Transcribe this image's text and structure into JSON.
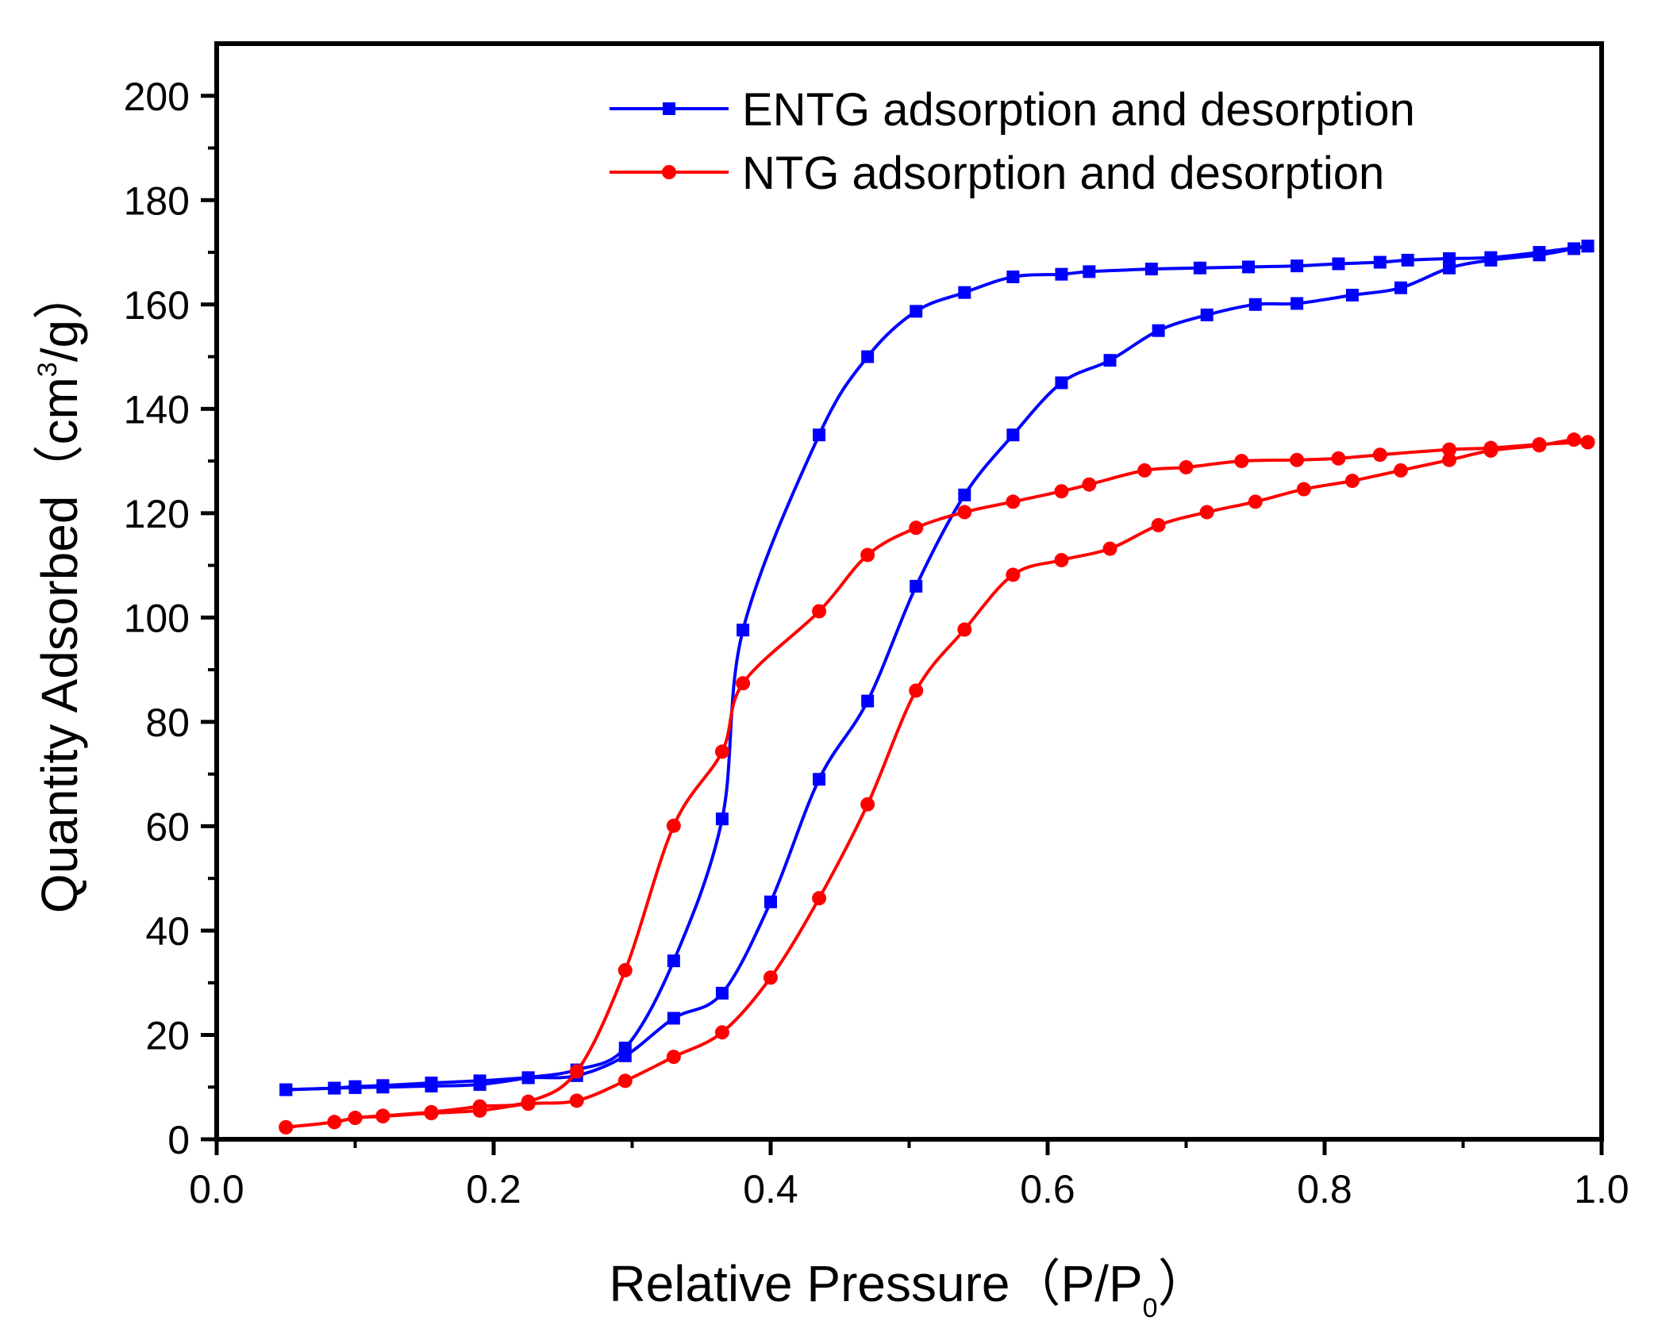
{
  "chart_data": {
    "type": "line",
    "xlabel": {
      "main": "Relative Pressure（P/P",
      "sub": "0",
      "end": "）"
    },
    "ylabel": {
      "main": "Quantity Adsorbed（cm",
      "sup": "3",
      "end": "/g）"
    },
    "xlim": [
      0.0,
      1.0
    ],
    "ylim": [
      0,
      210
    ],
    "x_ticks": [
      "0.0",
      "0.2",
      "0.4",
      "0.6",
      "0.8",
      "1.0"
    ],
    "y_ticks": [
      "0",
      "20",
      "40",
      "60",
      "80",
      "100",
      "120",
      "140",
      "160",
      "180",
      "200"
    ],
    "grid": false,
    "legend_position": "top-right",
    "series": [
      {
        "name": "ENTG adsorption and desorption",
        "color": "#0000ff",
        "marker": "square",
        "adsorption": [
          [
            0.05,
            9.5
          ],
          [
            0.085,
            9.8
          ],
          [
            0.1,
            10.1
          ],
          [
            0.12,
            10.3
          ],
          [
            0.155,
            10.8
          ],
          [
            0.19,
            11.2
          ],
          [
            0.225,
            11.8
          ],
          [
            0.26,
            12.2
          ],
          [
            0.295,
            16.0
          ],
          [
            0.33,
            23.2
          ],
          [
            0.365,
            28.0
          ],
          [
            0.4,
            45.5
          ],
          [
            0.435,
            69.0
          ],
          [
            0.47,
            84.0
          ],
          [
            0.505,
            106.0
          ],
          [
            0.54,
            123.5
          ],
          [
            0.575,
            135.0
          ],
          [
            0.61,
            145.0
          ],
          [
            0.645,
            149.3
          ],
          [
            0.68,
            155.0
          ],
          [
            0.715,
            158.0
          ],
          [
            0.75,
            160.0
          ],
          [
            0.78,
            160.2
          ],
          [
            0.82,
            161.8
          ],
          [
            0.855,
            163.2
          ],
          [
            0.89,
            167.0
          ],
          [
            0.92,
            168.5
          ],
          [
            0.955,
            169.5
          ],
          [
            0.98,
            170.7
          ],
          [
            0.99,
            171.2
          ]
        ],
        "desorption": [
          [
            0.99,
            171.2
          ],
          [
            0.955,
            170.0
          ],
          [
            0.92,
            169.0
          ],
          [
            0.89,
            168.8
          ],
          [
            0.86,
            168.5
          ],
          [
            0.84,
            168.1
          ],
          [
            0.81,
            167.8
          ],
          [
            0.78,
            167.4
          ],
          [
            0.745,
            167.2
          ],
          [
            0.71,
            167.0
          ],
          [
            0.675,
            166.8
          ],
          [
            0.63,
            166.3
          ],
          [
            0.61,
            165.8
          ],
          [
            0.575,
            165.3
          ],
          [
            0.54,
            162.3
          ],
          [
            0.505,
            158.7
          ],
          [
            0.47,
            150.0
          ],
          [
            0.435,
            135.0
          ],
          [
            0.38,
            97.6
          ],
          [
            0.365,
            61.4
          ],
          [
            0.33,
            34.2
          ],
          [
            0.295,
            17.5
          ],
          [
            0.26,
            13.3
          ],
          [
            0.225,
            11.8
          ],
          [
            0.19,
            10.5
          ],
          [
            0.155,
            10.2
          ],
          [
            0.12,
            10.0
          ],
          [
            0.1,
            9.9
          ],
          [
            0.085,
            9.8
          ],
          [
            0.05,
            9.5
          ]
        ]
      },
      {
        "name": "NTG adsorption and desorption",
        "color": "#ff0000",
        "marker": "circle",
        "adsorption": [
          [
            0.05,
            2.3
          ],
          [
            0.085,
            3.3
          ],
          [
            0.1,
            4.1
          ],
          [
            0.12,
            4.4
          ],
          [
            0.155,
            5.0
          ],
          [
            0.19,
            5.5
          ],
          [
            0.225,
            6.8
          ],
          [
            0.26,
            7.4
          ],
          [
            0.295,
            11.2
          ],
          [
            0.33,
            15.8
          ],
          [
            0.365,
            20.5
          ],
          [
            0.4,
            31.0
          ],
          [
            0.435,
            46.2
          ],
          [
            0.47,
            64.2
          ],
          [
            0.505,
            86.0
          ],
          [
            0.54,
            97.7
          ],
          [
            0.575,
            108.2
          ],
          [
            0.61,
            111.0
          ],
          [
            0.645,
            113.2
          ],
          [
            0.68,
            117.7
          ],
          [
            0.715,
            120.2
          ],
          [
            0.75,
            122.2
          ],
          [
            0.785,
            124.6
          ],
          [
            0.82,
            126.2
          ],
          [
            0.855,
            128.2
          ],
          [
            0.89,
            130.2
          ],
          [
            0.92,
            132.0
          ],
          [
            0.955,
            133.0
          ],
          [
            0.98,
            134.1
          ],
          [
            0.99,
            133.6
          ]
        ],
        "desorption": [
          [
            0.99,
            133.6
          ],
          [
            0.955,
            133.2
          ],
          [
            0.92,
            132.5
          ],
          [
            0.89,
            132.2
          ],
          [
            0.84,
            131.2
          ],
          [
            0.81,
            130.5
          ],
          [
            0.78,
            130.2
          ],
          [
            0.74,
            130.0
          ],
          [
            0.7,
            128.8
          ],
          [
            0.67,
            128.2
          ],
          [
            0.63,
            125.5
          ],
          [
            0.61,
            124.2
          ],
          [
            0.575,
            122.2
          ],
          [
            0.54,
            120.2
          ],
          [
            0.505,
            117.2
          ],
          [
            0.47,
            112.0
          ],
          [
            0.435,
            101.2
          ],
          [
            0.38,
            87.4
          ],
          [
            0.365,
            74.3
          ],
          [
            0.33,
            60.1
          ],
          [
            0.295,
            32.4
          ],
          [
            0.26,
            13.0
          ],
          [
            0.225,
            7.2
          ],
          [
            0.19,
            6.3
          ],
          [
            0.155,
            5.2
          ],
          [
            0.12,
            4.5
          ],
          [
            0.1,
            4.1
          ],
          [
            0.085,
            3.3
          ],
          [
            0.05,
            2.3
          ]
        ]
      }
    ]
  }
}
